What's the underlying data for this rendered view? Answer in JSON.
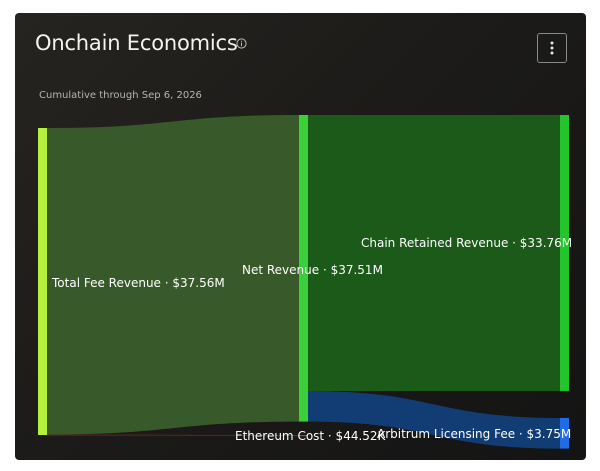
{
  "header": {
    "title": "Onchain Economics",
    "subtitle": "Cumulative through Sep 6, 2026",
    "info_icon": "info-icon",
    "menu_icon": "vertical-dots-icon"
  },
  "chart_data": {
    "type": "sankey",
    "unit": "USD",
    "nodes": [
      {
        "id": "total_fee",
        "label": "Total Fee Revenue · $37.56M",
        "value": 37.56,
        "color": "#b4f03c"
      },
      {
        "id": "net_rev",
        "label": "Net Revenue · $37.51M",
        "value": 37.51,
        "color": "#39d039"
      },
      {
        "id": "eth_cost",
        "label": "Ethereum Cost · $44.52K",
        "value": 0.04452,
        "color": "#c23a2a"
      },
      {
        "id": "chain_retained",
        "label": "Chain Retained Revenue · $33.76M",
        "value": 33.76,
        "color": "#23c62a"
      },
      {
        "id": "arb_license",
        "label": "Arbitrum Licensing Fee · $3.75M",
        "value": 3.75,
        "color": "#1f6be8"
      }
    ],
    "links": [
      {
        "source": "total_fee",
        "target": "net_rev",
        "value": 37.51
      },
      {
        "source": "total_fee",
        "target": "eth_cost",
        "value": 0.04452
      },
      {
        "source": "net_rev",
        "target": "chain_retained",
        "value": 33.76
      },
      {
        "source": "net_rev",
        "target": "arb_license",
        "value": 3.75
      }
    ]
  }
}
